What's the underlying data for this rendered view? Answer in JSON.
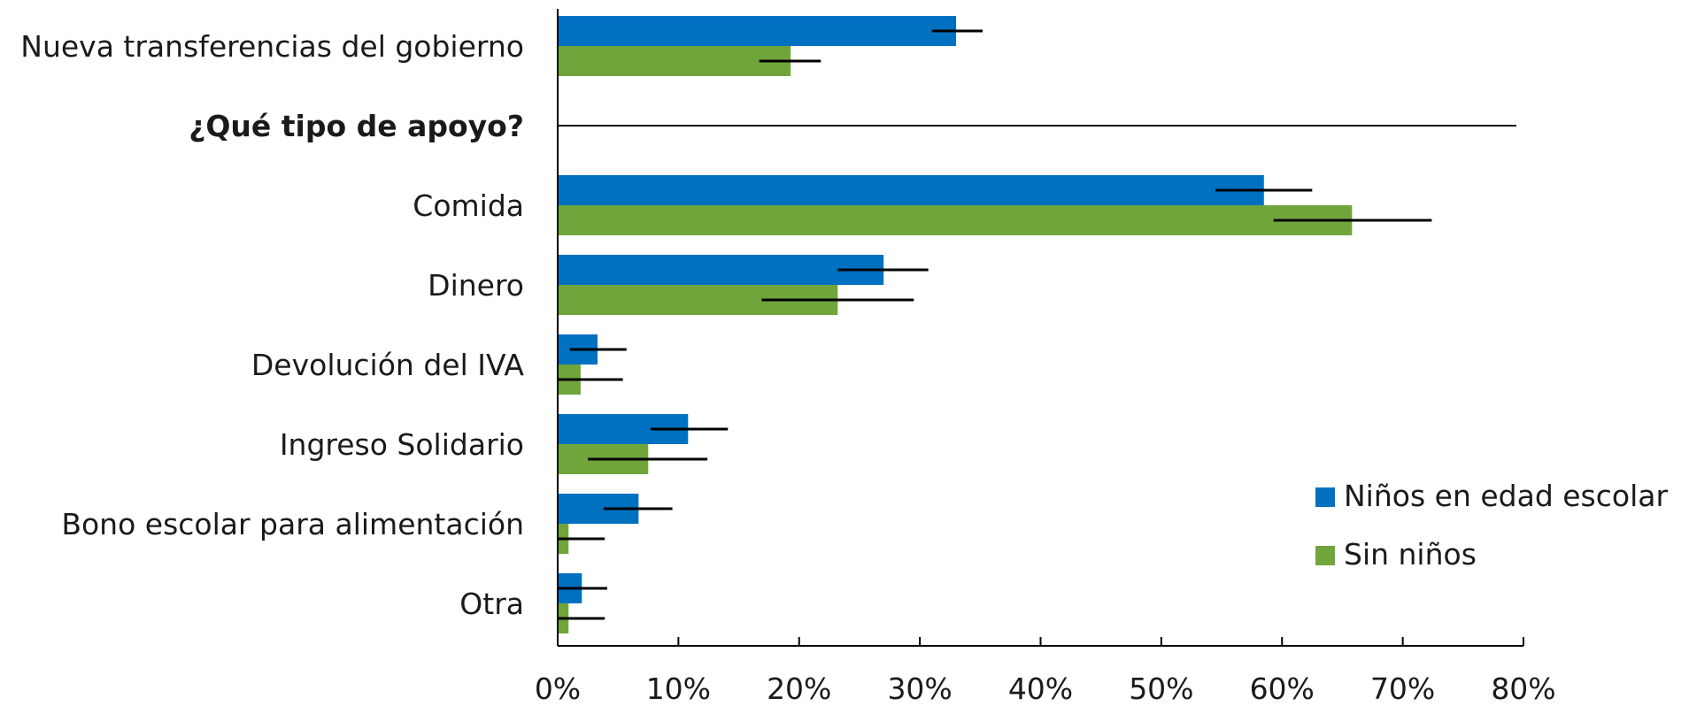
{
  "chart_data": {
    "type": "bar",
    "orientation": "horizontal",
    "categories": [
      "Nueva transferencias del gobierno",
      "¿Qué tipo de apoyo?",
      "Comida",
      "Dinero",
      "Devolución del IVA",
      "Ingreso Solidario",
      "Bono escolar para alimentación",
      "Otra"
    ],
    "bold_categories": [
      "¿Qué tipo de apoyo?"
    ],
    "separator_after_category": "¿Qué tipo de apoyo?",
    "series": [
      {
        "name": "Niños en edad escolar",
        "color": "#0070C0",
        "values": [
          0.33,
          null,
          0.585,
          0.27,
          0.033,
          0.108,
          0.067,
          0.02
        ],
        "error_low": [
          0.31,
          null,
          0.545,
          0.232,
          0.01,
          0.077,
          0.038,
          0.0
        ],
        "error_high": [
          0.352,
          null,
          0.625,
          0.307,
          0.057,
          0.141,
          0.095,
          0.041
        ]
      },
      {
        "name": "Sin niños",
        "color": "#70A53C",
        "values": [
          0.193,
          null,
          0.658,
          0.232,
          0.019,
          0.075,
          0.009,
          0.009
        ],
        "error_low": [
          0.167,
          null,
          0.593,
          0.169,
          0.0,
          0.025,
          0.0,
          0.0
        ],
        "error_high": [
          0.218,
          null,
          0.724,
          0.295,
          0.054,
          0.124,
          0.039,
          0.039
        ]
      }
    ],
    "xlim": [
      0,
      0.8
    ],
    "xticks": [
      0,
      0.1,
      0.2,
      0.3,
      0.4,
      0.5,
      0.6,
      0.7,
      0.8
    ],
    "xtick_labels": [
      "0%",
      "10%",
      "20%",
      "30%",
      "40%",
      "50%",
      "60%",
      "70%",
      "80%"
    ],
    "title": "",
    "xlabel": "",
    "ylabel": "",
    "grid": false,
    "legend_position": "bottom-right"
  }
}
